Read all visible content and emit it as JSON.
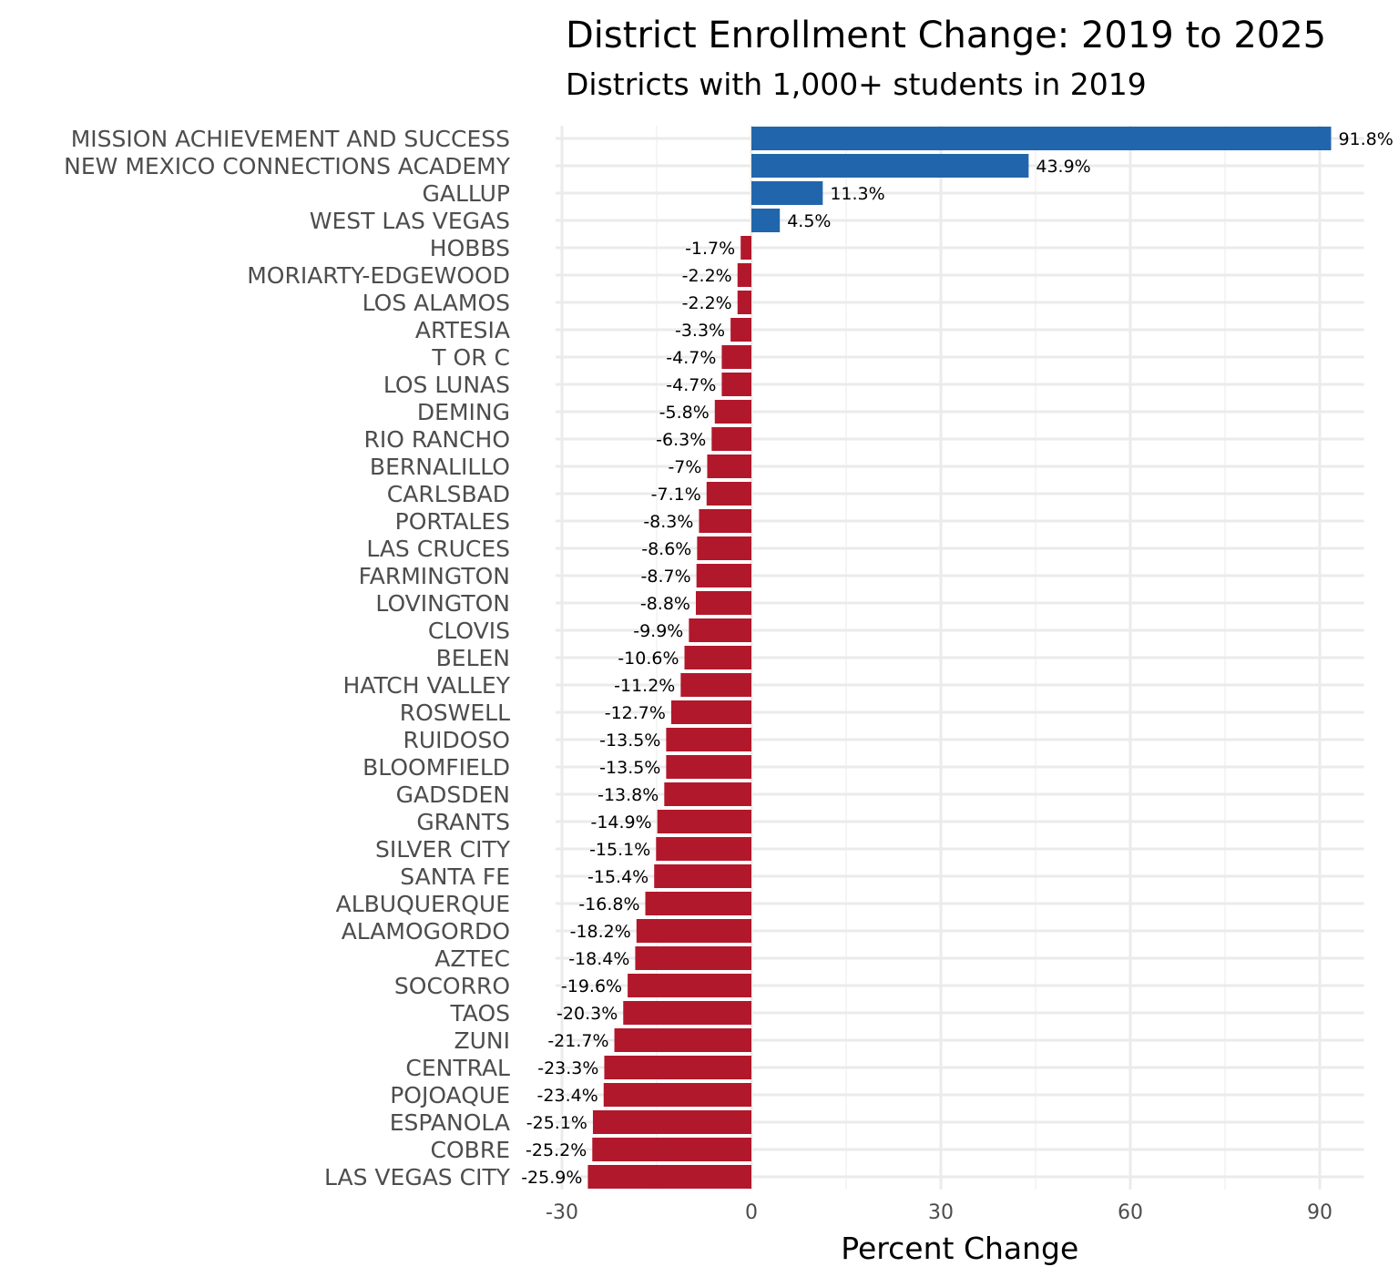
{
  "chart_data": {
    "type": "bar",
    "orientation": "horizontal",
    "title": "District Enrollment Change: 2019 to 2025",
    "subtitle": "Districts with 1,000+ students in 2019",
    "xlabel": "Percent Change",
    "ylabel": "",
    "xlim": [
      -31,
      97
    ],
    "xticks": [
      -30,
      0,
      30,
      60,
      90
    ],
    "grid": true,
    "colors": {
      "positive": "#2166ac",
      "negative": "#b2182b"
    },
    "categories": [
      "MISSION ACHIEVEMENT AND SUCCESS",
      "NEW MEXICO CONNECTIONS ACADEMY",
      "GALLUP",
      "WEST LAS VEGAS",
      "HOBBS",
      "MORIARTY-EDGEWOOD",
      "LOS ALAMOS",
      "ARTESIA",
      "T OR C",
      "LOS LUNAS",
      "DEMING",
      "RIO RANCHO",
      "BERNALILLO",
      "CARLSBAD",
      "PORTALES",
      "LAS CRUCES",
      "FARMINGTON",
      "LOVINGTON",
      "CLOVIS",
      "BELEN",
      "HATCH VALLEY",
      "ROSWELL",
      "RUIDOSO",
      "BLOOMFIELD",
      "GADSDEN",
      "GRANTS",
      "SILVER CITY",
      "SANTA FE",
      "ALBUQUERQUE",
      "ALAMOGORDO",
      "AZTEC",
      "SOCORRO",
      "TAOS",
      "ZUNI",
      "CENTRAL",
      "POJOAQUE",
      "ESPANOLA",
      "COBRE",
      "LAS VEGAS CITY"
    ],
    "values": [
      91.8,
      43.9,
      11.3,
      4.5,
      -1.7,
      -2.2,
      -2.2,
      -3.3,
      -4.7,
      -4.7,
      -5.8,
      -6.3,
      -7,
      -7.1,
      -8.3,
      -8.6,
      -8.7,
      -8.8,
      -9.9,
      -10.6,
      -11.2,
      -12.7,
      -13.5,
      -13.5,
      -13.8,
      -14.9,
      -15.1,
      -15.4,
      -16.8,
      -18.2,
      -18.4,
      -19.6,
      -20.3,
      -21.7,
      -23.3,
      -23.4,
      -25.1,
      -25.2,
      -25.9
    ],
    "data_labels": [
      "91.8%",
      "43.9%",
      "11.3%",
      "4.5%",
      "-1.7%",
      "-2.2%",
      "-2.2%",
      "-3.3%",
      "-4.7%",
      "-4.7%",
      "-5.8%",
      "-6.3%",
      "-7%",
      "-7.1%",
      "-8.3%",
      "-8.6%",
      "-8.7%",
      "-8.8%",
      "-9.9%",
      "-10.6%",
      "-11.2%",
      "-12.7%",
      "-13.5%",
      "-13.5%",
      "-13.8%",
      "-14.9%",
      "-15.1%",
      "-15.4%",
      "-16.8%",
      "-18.2%",
      "-18.4%",
      "-19.6%",
      "-20.3%",
      "-21.7%",
      "-23.3%",
      "-23.4%",
      "-25.1%",
      "-25.2%",
      "-25.9%"
    ]
  }
}
